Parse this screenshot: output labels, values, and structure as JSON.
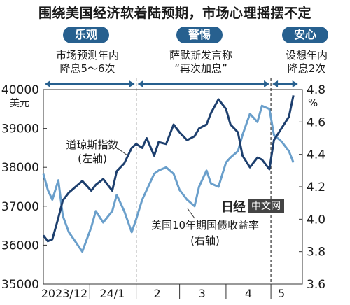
{
  "title": "围绕美国经济软着陆预期，市场心理摇摆不定",
  "phases": [
    {
      "badge": "乐观",
      "note_lines": [
        "市场预测年内",
        "降息5～6次"
      ]
    },
    {
      "badge": "警惕",
      "note_lines": [
        "萨默斯发言称",
        "“再次加息”"
      ]
    },
    {
      "badge": "安心",
      "note_lines": [
        "设想年内",
        "降息2次"
      ]
    }
  ],
  "watermark": {
    "logo": "日经",
    "text": "中文网"
  },
  "colors": {
    "dow": "#1d3f6e",
    "yield": "#6a9fcb",
    "badge": "#27608f",
    "arrow": "#27608f",
    "text": "#1a1a1a"
  },
  "chart_data": {
    "type": "line",
    "x": [
      "2023-12-01",
      "2023-12-04",
      "2023-12-07",
      "2023-12-11",
      "2023-12-14",
      "2023-12-18",
      "2023-12-21",
      "2023-12-27",
      "2024-01-02",
      "2024-01-05",
      "2024-01-10",
      "2024-01-16",
      "2024-01-19",
      "2024-01-24",
      "2024-01-29",
      "2024-02-01",
      "2024-02-05",
      "2024-02-08",
      "2024-02-13",
      "2024-02-16",
      "2024-02-21",
      "2024-02-26",
      "2024-03-01",
      "2024-03-06",
      "2024-03-11",
      "2024-03-14",
      "2024-03-19",
      "2024-03-22",
      "2024-03-27",
      "2024-04-01",
      "2024-04-04",
      "2024-04-09",
      "2024-04-12",
      "2024-04-17",
      "2024-04-22",
      "2024-04-25",
      "2024-04-30",
      "2024-05-03",
      "2024-05-08",
      "2024-05-13",
      "2024-05-16"
    ],
    "series": [
      {
        "name": "道琼斯指数",
        "axis_label": "(左轴)",
        "axis": "left",
        "values": [
          36250,
          36100,
          36150,
          36700,
          37150,
          37350,
          37450,
          37650,
          37400,
          37550,
          37700,
          37400,
          37900,
          38100,
          38500,
          38600,
          38500,
          38750,
          38300,
          38650,
          38600,
          39100,
          38900,
          38700,
          38800,
          39000,
          39100,
          39400,
          39750,
          39500,
          39100,
          38900,
          38300,
          38000,
          38250,
          38200,
          37950,
          38700,
          39000,
          39300,
          39850
        ]
      },
      {
        "name": "美国10年期国债收益率",
        "axis_label": "(右轴)",
        "axis": "right",
        "values": [
          4.28,
          4.18,
          4.12,
          4.24,
          4.02,
          3.92,
          3.88,
          3.8,
          3.95,
          4.05,
          3.98,
          4.05,
          4.15,
          4.05,
          3.92,
          4.0,
          4.12,
          4.18,
          4.28,
          4.3,
          4.32,
          4.28,
          4.18,
          4.12,
          4.08,
          4.2,
          4.3,
          4.22,
          4.2,
          4.35,
          4.38,
          4.42,
          4.52,
          4.65,
          4.6,
          4.7,
          4.68,
          4.52,
          4.48,
          4.42,
          4.35
        ]
      }
    ],
    "left_axis": {
      "unit": "美元",
      "ticks": [
        35000,
        36000,
        37000,
        38000,
        39000,
        40000
      ],
      "range": [
        35000,
        40000
      ]
    },
    "right_axis": {
      "unit": "%",
      "ticks": [
        3.6,
        3.8,
        4.0,
        4.2,
        4.4,
        4.6,
        4.8
      ],
      "range": [
        3.6,
        4.8
      ]
    },
    "x_labels": [
      {
        "text": "2023/12",
        "date": "2023-12-15"
      },
      {
        "text": "24/1",
        "date": "2024-01-16"
      },
      {
        "text": "2",
        "date": "2024-02-15"
      },
      {
        "text": "3",
        "date": "2024-03-16"
      },
      {
        "text": "4",
        "date": "2024-04-16"
      },
      {
        "text": "5",
        "date": "2024-05-08"
      }
    ],
    "x_separators": [
      "2024-01-01",
      "2024-02-01",
      "2024-03-01",
      "2024-04-01",
      "2024-05-01"
    ],
    "phase_ranges": [
      {
        "start": "2023-12-01",
        "end": "2024-02-01"
      },
      {
        "start": "2024-02-01",
        "end": "2024-05-01"
      },
      {
        "start": "2024-05-01",
        "end": "2024-05-20"
      }
    ],
    "grid": false
  }
}
